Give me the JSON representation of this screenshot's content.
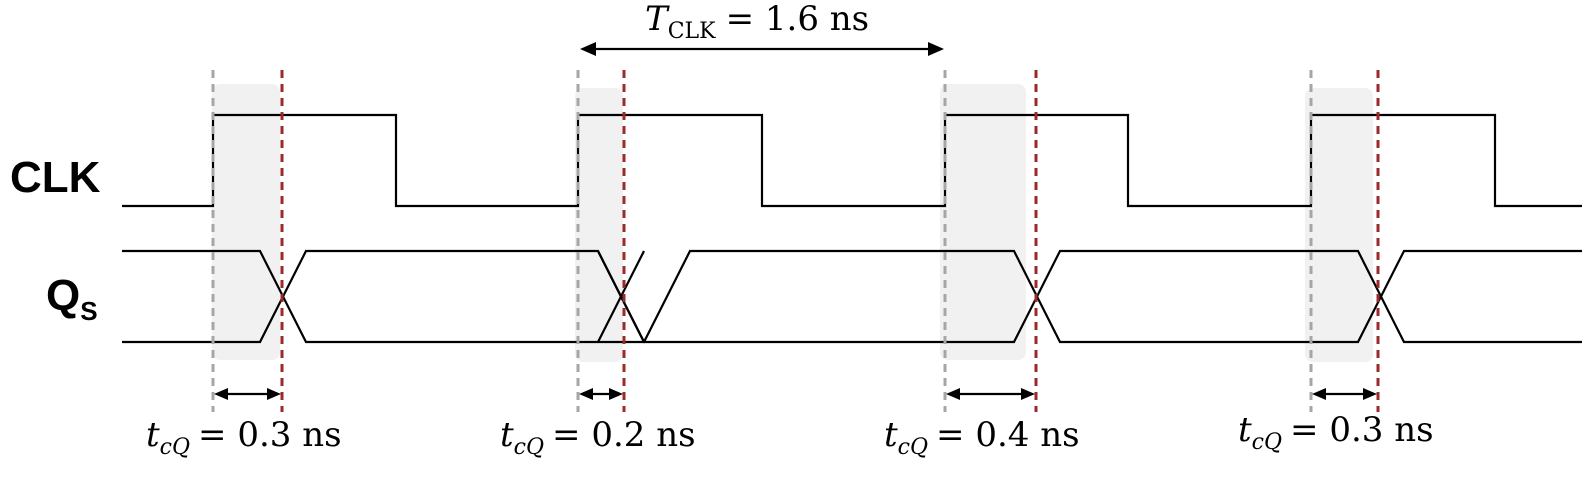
{
  "signals": {
    "clk": {
      "label": "CLK"
    },
    "qs": {
      "label_main": "Q",
      "label_sub": "S"
    }
  },
  "period": {
    "symbol": "T",
    "symbol_sub": "CLK",
    "eq_value": "= 1.6 ns"
  },
  "delays": [
    {
      "symbol": "t",
      "sub_c": "c",
      "sub_q": "Q",
      "eq_value": "= 0.3 ns",
      "value_ns": 0.3
    },
    {
      "symbol": "t",
      "sub_c": "c",
      "sub_q": "Q",
      "eq_value": "= 0.2 ns",
      "value_ns": 0.2
    },
    {
      "symbol": "t",
      "sub_c": "c",
      "sub_q": "Q",
      "eq_value": "= 0.4 ns",
      "value_ns": 0.4
    },
    {
      "symbol": "t",
      "sub_c": "c",
      "sub_q": "Q",
      "eq_value": "= 0.3 ns",
      "value_ns": 0.3
    }
  ],
  "colors": {
    "clock_edge_line": "#a6a6a6",
    "output_change_line": "#9b2a2a",
    "delay_shade": "#f1f1f1",
    "waveform": "#000000"
  }
}
